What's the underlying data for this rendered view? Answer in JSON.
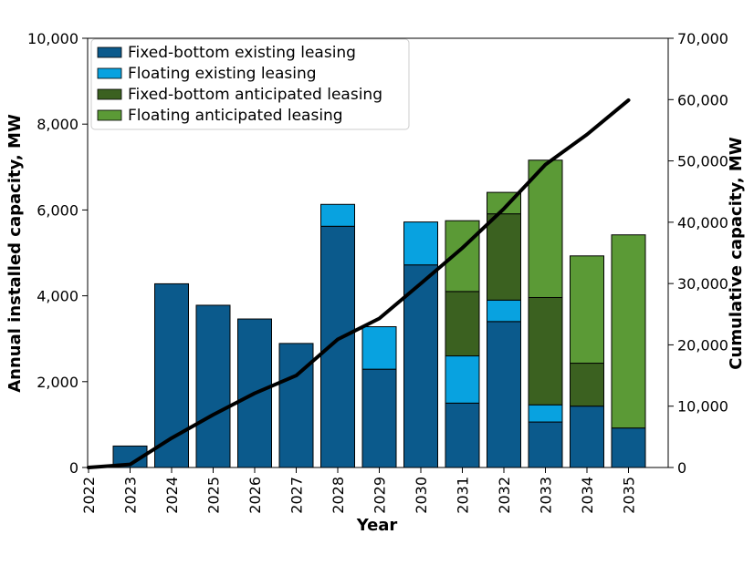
{
  "chart_data": {
    "type": "bar",
    "stacked": true,
    "categories": [
      "2022",
      "2023",
      "2024",
      "2025",
      "2026",
      "2027",
      "2028",
      "2029",
      "2030",
      "2031",
      "2032",
      "2033",
      "2034",
      "2035"
    ],
    "series": [
      {
        "name": "Fixed-bottom existing leasing",
        "color": "#0b5a8c",
        "values": [
          0,
          500,
          4280,
          3780,
          3460,
          2890,
          5620,
          2290,
          4720,
          1500,
          3400,
          1060,
          1430,
          920
        ]
      },
      {
        "name": "Floating existing leasing",
        "color": "#08a2e0",
        "values": [
          0,
          0,
          0,
          0,
          0,
          0,
          510,
          990,
          1000,
          1100,
          500,
          400,
          0,
          0
        ]
      },
      {
        "name": "Fixed-bottom anticipated leasing",
        "color": "#3b6120",
        "values": [
          0,
          0,
          0,
          0,
          0,
          0,
          0,
          0,
          0,
          1500,
          2010,
          2500,
          1000,
          0
        ]
      },
      {
        "name": "Floating anticipated leasing",
        "color": "#5b9a36",
        "values": [
          0,
          0,
          0,
          0,
          0,
          0,
          0,
          0,
          0,
          1650,
          500,
          3200,
          2500,
          4500
        ]
      }
    ],
    "line": {
      "name": "Cumulative capacity",
      "color": "#000000",
      "axis": "right",
      "values": [
        0,
        500,
        4800,
        8600,
        12100,
        15000,
        20900,
        24300,
        30000,
        35800,
        42200,
        49400,
        54300,
        59900
      ]
    },
    "xlabel": "Year",
    "ylabel": "Annual installed capacity, MW",
    "y2label": "Cumulative capacity, MW",
    "ylim": [
      0,
      10000
    ],
    "y2lim": [
      0,
      70000
    ],
    "yticks": [
      0,
      2000,
      4000,
      6000,
      8000,
      10000
    ],
    "y2ticks": [
      0,
      10000,
      20000,
      30000,
      40000,
      50000,
      60000,
      70000
    ],
    "ytick_labels": [
      "0",
      "2,000",
      "4,000",
      "6,000",
      "8,000",
      "10,000"
    ],
    "y2tick_labels": [
      "0",
      "10,000",
      "20,000",
      "30,000",
      "40,000",
      "50,000",
      "60,000",
      "70,000"
    ],
    "legend_position": "top-left",
    "grid": false
  }
}
